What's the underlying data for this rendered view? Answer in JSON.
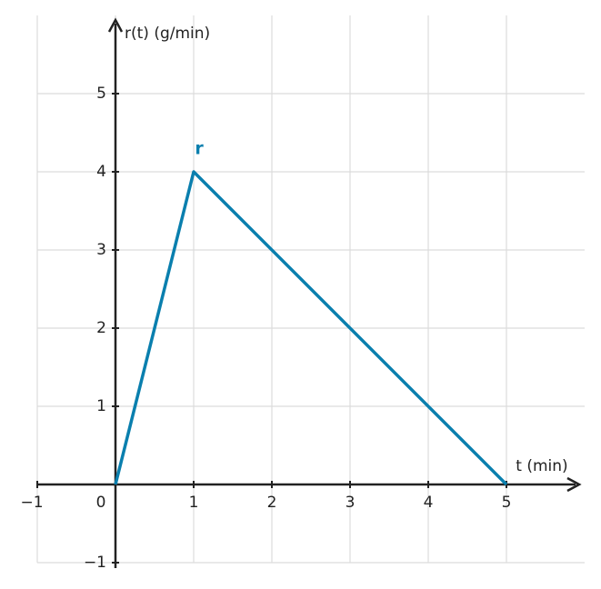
{
  "chart_data": {
    "type": "line",
    "x_label": "t (min)",
    "y_label": "r(t) (g/min)",
    "xlim": [
      -1,
      6
    ],
    "ylim": [
      -1,
      6
    ],
    "xticks": [
      {
        "value": -1,
        "label": "−1"
      },
      0,
      1,
      2,
      3,
      4,
      5
    ],
    "yticks": [
      {
        "value": -1,
        "label": "−1"
      },
      1,
      2,
      3,
      4,
      5
    ],
    "grid": true,
    "series": [
      {
        "name": "r",
        "color": "#0a7fae",
        "x": [
          0,
          1,
          5
        ],
        "values": [
          0,
          4,
          0
        ]
      }
    ]
  }
}
